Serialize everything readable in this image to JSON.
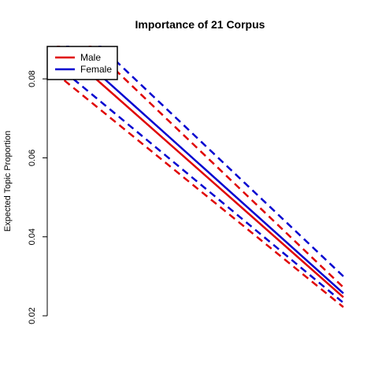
{
  "chart_data": {
    "type": "line",
    "title": "Importance of 21 Corpus",
    "xlabel": "",
    "ylabel": "Expected Topic Proportion",
    "xlim": [
      0,
      1
    ],
    "ylim": [
      0.02,
      0.09
    ],
    "yticks": [
      0.02,
      0.04,
      0.06,
      0.08
    ],
    "ytick_labels": [
      "0.02",
      "0.04",
      "0.06",
      "0.08"
    ],
    "legend_position": "top-left",
    "grid": false,
    "series": [
      {
        "name": "Male",
        "color": "#e00000",
        "x": [
          0,
          1
        ],
        "estimate": [
          0.0891,
          0.0247
        ],
        "ci_lower": [
          0.0815,
          0.0222
        ],
        "ci_upper": [
          0.0968,
          0.0272
        ]
      },
      {
        "name": "Female",
        "color": "#0000d0",
        "x": [
          0,
          1
        ],
        "estimate": [
          0.0912,
          0.0257
        ],
        "ci_lower": [
          0.0838,
          0.0233
        ],
        "ci_upper": [
          0.0991,
          0.03
        ]
      }
    ]
  }
}
